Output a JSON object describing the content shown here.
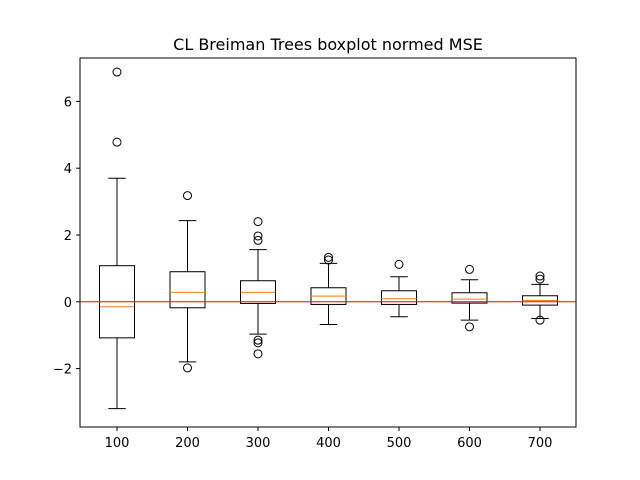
{
  "chart_data": {
    "type": "box",
    "title": "CL Breiman Trees boxplot normed MSE",
    "xlabel": "",
    "ylabel": "",
    "categories": [
      "100",
      "200",
      "300",
      "400",
      "500",
      "600",
      "700"
    ],
    "ylim": [
      -3.75,
      7.3
    ],
    "yticks": [
      -2,
      0,
      2,
      4,
      6
    ],
    "ytick_labels": [
      "−2",
      "0",
      "2",
      "4",
      "6"
    ],
    "boxes": [
      {
        "label": "100",
        "whisker_low": -3.2,
        "q1": -1.08,
        "median": -0.15,
        "q3": 1.08,
        "whisker_high": 3.7,
        "fliers": [
          6.88,
          4.78
        ]
      },
      {
        "label": "200",
        "whisker_low": -1.8,
        "q1": -0.18,
        "median": 0.28,
        "q3": 0.9,
        "whisker_high": 2.43,
        "fliers": [
          3.18,
          -1.98
        ]
      },
      {
        "label": "300",
        "whisker_low": -0.97,
        "q1": -0.05,
        "median": 0.28,
        "q3": 0.63,
        "whisker_high": 1.56,
        "fliers": [
          2.4,
          1.97,
          1.84,
          -1.15,
          -1.23,
          -1.56
        ]
      },
      {
        "label": "400",
        "whisker_low": -0.68,
        "q1": -0.08,
        "median": 0.17,
        "q3": 0.42,
        "whisker_high": 1.15,
        "fliers": [
          1.33,
          1.25
        ]
      },
      {
        "label": "500",
        "whisker_low": -0.45,
        "q1": -0.08,
        "median": 0.09,
        "q3": 0.33,
        "whisker_high": 0.75,
        "fliers": [
          1.12
        ]
      },
      {
        "label": "600",
        "whisker_low": -0.55,
        "q1": -0.04,
        "median": 0.08,
        "q3": 0.27,
        "whisker_high": 0.66,
        "fliers": [
          0.97,
          -0.75
        ]
      },
      {
        "label": "700",
        "whisker_low": -0.5,
        "q1": -0.1,
        "median": 0.04,
        "q3": 0.18,
        "whisker_high": 0.52,
        "fliers": [
          0.77,
          0.68,
          -0.55
        ]
      }
    ],
    "reference_line": {
      "y": 0,
      "color": "#ff0000"
    },
    "colors": {
      "box": "#000000",
      "median": "#ff7f0e",
      "reference": "#ff0000"
    },
    "grid": false,
    "legend": "none"
  }
}
